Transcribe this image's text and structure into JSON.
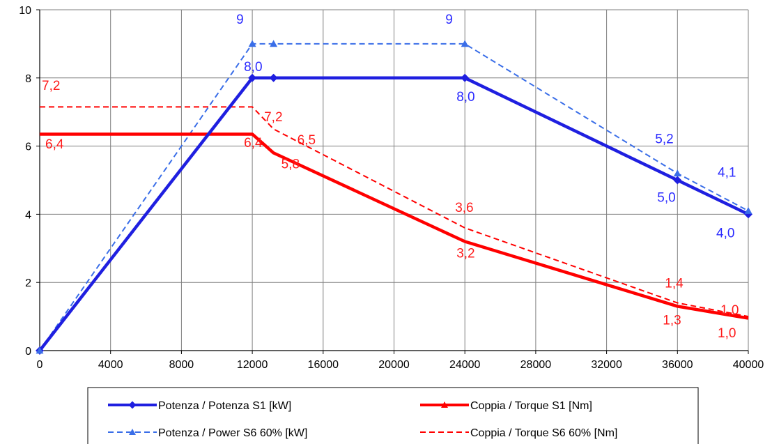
{
  "chart_data": {
    "type": "line",
    "xlim": [
      0,
      40000
    ],
    "ylim": [
      0,
      10
    ],
    "x_ticks": [
      0,
      4000,
      8000,
      12000,
      16000,
      20000,
      24000,
      28000,
      32000,
      36000,
      40000
    ],
    "y_ticks": [
      0,
      2,
      4,
      6,
      8,
      10
    ],
    "grid": true,
    "legend_placement": "bottom",
    "series": [
      {
        "name": "Potenza / Potenza S1 [kW]",
        "color": "#1f1fe0",
        "style": "solid",
        "marker": "diamond",
        "points": [
          [
            0,
            0
          ],
          [
            12000,
            8.0
          ],
          [
            13200,
            8.0
          ],
          [
            24000,
            8.0
          ],
          [
            36000,
            5.0
          ],
          [
            40000,
            4.0
          ]
        ],
        "marker_x": [
          0,
          12000,
          13200,
          24000,
          36000,
          40000
        ],
        "labels": [
          {
            "x": 12000,
            "y": 8.0,
            "text": "8,0"
          },
          {
            "x": 24000,
            "y": 8.0,
            "text": "8,0"
          },
          {
            "x": 36000,
            "y": 5.0,
            "text": "5,0"
          },
          {
            "x": 40000,
            "y": 4.0,
            "text": "4,0"
          }
        ]
      },
      {
        "name": "Coppia / Torque S1 [Nm]",
        "color": "#ff0000",
        "style": "solid",
        "marker": "none",
        "points": [
          [
            0,
            6.35
          ],
          [
            12000,
            6.35
          ],
          [
            13200,
            5.8
          ],
          [
            24000,
            3.2
          ],
          [
            36000,
            1.3
          ],
          [
            40000,
            0.95
          ]
        ],
        "labels": [
          {
            "x": 0,
            "y": 6.4,
            "text": "6,4"
          },
          {
            "x": 12000,
            "y": 6.4,
            "text": "6,4"
          },
          {
            "x": 13200,
            "y": 5.8,
            "text": "5,8"
          },
          {
            "x": 24000,
            "y": 3.2,
            "text": "3,2"
          },
          {
            "x": 36000,
            "y": 1.3,
            "text": "1,3"
          },
          {
            "x": 40000,
            "y": 1.0,
            "text": "1,0"
          }
        ]
      },
      {
        "name": "Potenza / Power S6 60% [kW]",
        "color": "#3a6ee8",
        "style": "dashed",
        "marker": "triangle",
        "points": [
          [
            0,
            0
          ],
          [
            12000,
            9.0
          ],
          [
            13200,
            9.0
          ],
          [
            24000,
            9.0
          ],
          [
            36000,
            5.2
          ],
          [
            40000,
            4.1
          ]
        ],
        "marker_x": [
          0,
          12000,
          13200,
          24000,
          36000,
          40000
        ],
        "labels": [
          {
            "x": 12000,
            "y": 9,
            "text": "9"
          },
          {
            "x": 24000,
            "y": 9,
            "text": "9"
          },
          {
            "x": 36000,
            "y": 5.2,
            "text": "5,2"
          },
          {
            "x": 40000,
            "y": 4.1,
            "text": "4,1"
          }
        ]
      },
      {
        "name": "Coppia / Torque S6 60% [Nm]",
        "color": "#ff0000",
        "style": "dashed",
        "marker": "none",
        "points": [
          [
            0,
            7.15
          ],
          [
            12000,
            7.15
          ],
          [
            13200,
            6.5
          ],
          [
            24000,
            3.6
          ],
          [
            36000,
            1.4
          ],
          [
            40000,
            1.0
          ]
        ],
        "labels": [
          {
            "x": 0,
            "y": 7.2,
            "text": "7,2"
          },
          {
            "x": 12000,
            "y": 7.2,
            "text": "7,2"
          },
          {
            "x": 13200,
            "y": 6.5,
            "text": "6,5"
          },
          {
            "x": 24000,
            "y": 3.6,
            "text": "3,6"
          },
          {
            "x": 36000,
            "y": 1.4,
            "text": "1,4"
          },
          {
            "x": 40000,
            "y": 1.0,
            "text": "1,0"
          }
        ]
      }
    ]
  }
}
